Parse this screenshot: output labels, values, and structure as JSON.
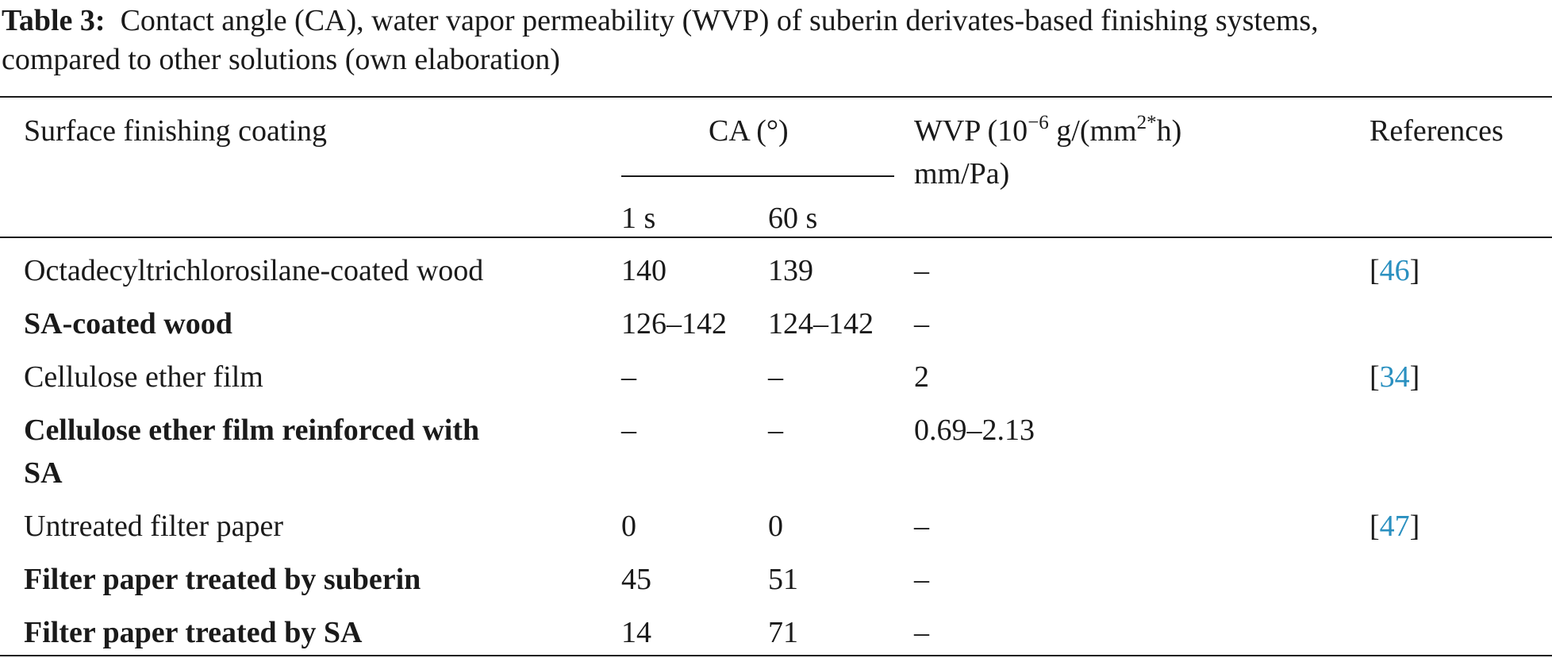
{
  "caption": {
    "label": "Table 3:",
    "line1": "Contact angle (CA), water vapor permeability (WVP) of suberin derivates-based finishing systems,",
    "line2": "compared to other solutions (own elaboration)"
  },
  "header": {
    "coating": "Surface finishing coating",
    "ca": "CA (°)",
    "ca_1s": "1 s",
    "ca_60s": "60 s",
    "wvp_prefix": "WVP (10",
    "wvp_exp": "−6",
    "wvp_mid": " g/(mm",
    "wvp_exp2": "2*",
    "wvp_suffix": "h)",
    "wvp_line2": "mm/Pa)",
    "references": "References"
  },
  "rows": [
    {
      "coating": "Octadecyltrichlorosilane-coated wood",
      "ca_1s": "140",
      "ca_60s": "139",
      "wvp": "–",
      "ref_open": "[",
      "ref": "46",
      "ref_close": "]",
      "bold": false
    },
    {
      "coating": "SA-coated wood",
      "ca_1s": "126–142",
      "ca_60s": "124–142",
      "wvp": "–",
      "ref_open": "",
      "ref": "",
      "ref_close": "",
      "bold": true
    },
    {
      "coating": "Cellulose ether film",
      "ca_1s": "–",
      "ca_60s": "–",
      "wvp": "2",
      "ref_open": "[",
      "ref": "34",
      "ref_close": "]",
      "bold": false
    },
    {
      "coating": "Cellulose ether film reinforced with",
      "coating_line2": "SA",
      "ca_1s": "–",
      "ca_60s": "–",
      "wvp": "0.69–2.13",
      "ref_open": "",
      "ref": "",
      "ref_close": "",
      "bold": true
    },
    {
      "coating": "Untreated filter paper",
      "ca_1s": "0",
      "ca_60s": "0",
      "wvp": "–",
      "ref_open": "[",
      "ref": "47",
      "ref_close": "]",
      "bold": false
    },
    {
      "coating": "Filter paper treated by suberin",
      "ca_1s": "45",
      "ca_60s": "51",
      "wvp": "–",
      "ref_open": "",
      "ref": "",
      "ref_close": "",
      "bold": true
    },
    {
      "coating": "Filter paper treated by SA",
      "ca_1s": "14",
      "ca_60s": "71",
      "wvp": "–",
      "ref_open": "",
      "ref": "",
      "ref_close": "",
      "bold": true
    }
  ],
  "colors": {
    "text": "#1a1a1a",
    "link": "#2a90c0"
  }
}
